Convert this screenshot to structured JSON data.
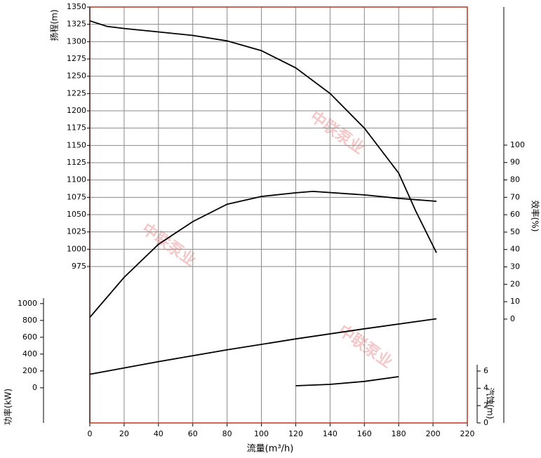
{
  "chart_data": {
    "type": "line",
    "x_label": "流量(m³/h)",
    "y_label": "扬程(m)",
    "y2_label": "效率(%)",
    "y3_label": "功率(kW)",
    "y4_label": "汽蚀(m)",
    "watermark": "中联泵业",
    "xlim": [
      0,
      220
    ],
    "xticks": [
      0,
      20,
      40,
      60,
      80,
      100,
      120,
      140,
      160,
      180,
      200,
      220
    ],
    "ylim": [
      749,
      1350
    ],
    "yticks": [
      975,
      1000,
      1025,
      1050,
      1075,
      1100,
      1125,
      1150,
      1175,
      1200,
      1225,
      1250,
      1275,
      1300,
      1325,
      1350
    ],
    "y2lim": [
      -59.7,
      179.4
    ],
    "y2ticks": [
      0,
      10,
      20,
      30,
      40,
      50,
      60,
      70,
      80,
      90,
      100
    ],
    "y3lim": [
      -418,
      4524
    ],
    "y3ticks": [
      0,
      200,
      400,
      600,
      800,
      1000
    ],
    "y4lim": [
      0,
      48.1
    ],
    "y4ticks": [
      0,
      2,
      4,
      6
    ],
    "grid": true,
    "series": [
      {
        "axis": "y",
        "color": "#000000",
        "x": [
          0,
          10,
          20,
          40,
          60,
          80,
          100,
          120,
          140,
          160,
          180,
          190,
          202
        ],
        "values": [
          1330,
          1322,
          1319,
          1314,
          1309,
          1301,
          1287,
          1262,
          1225,
          1175,
          1110,
          1055,
          995
        ]
      },
      {
        "axis": "y2",
        "color": "#000000",
        "x": [
          0,
          20,
          40,
          60,
          80,
          100,
          120,
          130,
          160,
          180,
          202
        ],
        "values": [
          1,
          24,
          43,
          56,
          66,
          70.5,
          72.6,
          73.4,
          71.4,
          69.4,
          67.7
        ]
      },
      {
        "axis": "y3",
        "color": "#000000",
        "x": [
          0,
          40,
          80,
          120,
          160,
          202
        ],
        "values": [
          160,
          310,
          450,
          580,
          700,
          820
        ]
      },
      {
        "axis": "y4",
        "color": "#000000",
        "x": [
          120,
          140,
          160,
          180
        ],
        "values": [
          4.3,
          4.46,
          4.8,
          5.35
        ]
      }
    ]
  }
}
